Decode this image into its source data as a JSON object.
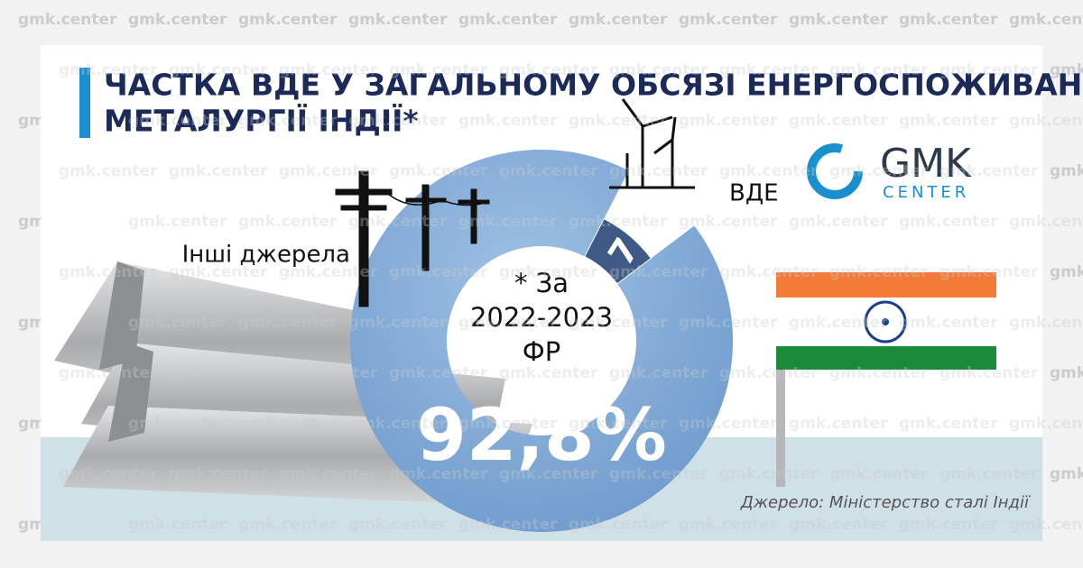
{
  "chart_data": {
    "type": "donut",
    "title": [
      "ЧАСТКА ВДЕ У ЗАГАЛЬНОМУ ОБСЯЗІ ЕНЕРГОСПОЖИВАННЯ",
      "МЕТАЛУРГІЇ ІНДІЇ*"
    ],
    "categories": [
      "Інші джерела",
      "ВДЕ"
    ],
    "values": [
      92.8,
      7.2
    ],
    "value_labels": [
      "92,8%",
      "7,2%"
    ],
    "colors": [
      "#7ea8d6",
      "#3f5a85"
    ],
    "center_note": [
      "* За",
      "2022-2023",
      "ФР"
    ],
    "source": "Джерело: Міністерство сталі Індії"
  },
  "logo": {
    "name": "GMK",
    "subtitle": "CENTER"
  },
  "watermark": "gmk.center"
}
